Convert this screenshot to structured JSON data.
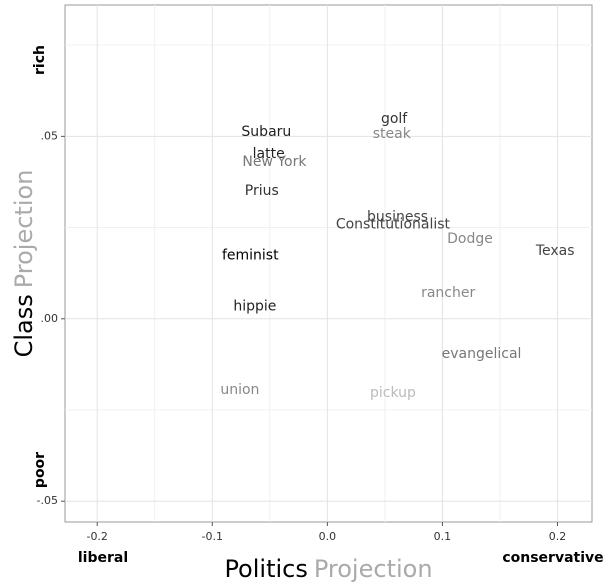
{
  "chart_data": {
    "type": "scatter",
    "x_label": [
      "Politics",
      "Projection"
    ],
    "y_label": [
      "Class",
      "Projection"
    ],
    "x_ends": [
      "liberal",
      "conservative"
    ],
    "y_ends": [
      "poor",
      "rich"
    ],
    "axis_label_colors": [
      "#000000",
      "#aaaaaa"
    ],
    "xlim": [
      -0.228,
      0.23
    ],
    "ylim": [
      -0.0557,
      0.086
    ],
    "xticks": [
      -0.2,
      -0.1,
      {
        "value": 0,
        "label": "0.0"
      },
      0.1,
      0.2
    ],
    "yticks": [
      {
        "value": -0.05,
        "label": "-.05"
      },
      {
        "value": 0,
        "label": ".00"
      },
      {
        "value": 0.05,
        "label": ".05"
      }
    ],
    "x_minor_grid": [
      -0.15,
      -0.05,
      0.05,
      0.15
    ],
    "y_minor_grid": [
      -0.025,
      0.025,
      0.075
    ],
    "grid": true,
    "points": [
      {
        "label": "Subaru",
        "x": -0.053,
        "y": 0.0512,
        "color": "#222222"
      },
      {
        "label": "latte",
        "x": -0.051,
        "y": 0.0452,
        "color": "#222222"
      },
      {
        "label": "New York",
        "x": -0.046,
        "y": 0.043,
        "color": "#777777"
      },
      {
        "label": "Prius",
        "x": -0.057,
        "y": 0.035,
        "color": "#333333"
      },
      {
        "label": "golf",
        "x": 0.058,
        "y": 0.0548,
        "color": "#333333"
      },
      {
        "label": "steak",
        "x": 0.056,
        "y": 0.0507,
        "color": "#888888"
      },
      {
        "label": "business",
        "x": 0.061,
        "y": 0.0279,
        "color": "#444444"
      },
      {
        "label": "Constitutionalist",
        "x": 0.057,
        "y": 0.0258,
        "color": "#444444"
      },
      {
        "label": "Dodge",
        "x": 0.124,
        "y": 0.0219,
        "color": "#888888"
      },
      {
        "label": "Texas",
        "x": 0.198,
        "y": 0.0186,
        "color": "#444444"
      },
      {
        "label": "feminist",
        "x": -0.067,
        "y": 0.0173,
        "color": "#000000"
      },
      {
        "label": "rancher",
        "x": 0.105,
        "y": 0.0071,
        "color": "#888888"
      },
      {
        "label": "hippie",
        "x": -0.063,
        "y": 0.0033,
        "color": "#222222"
      },
      {
        "label": "evangelical",
        "x": 0.134,
        "y": -0.0096,
        "color": "#777777"
      },
      {
        "label": "union",
        "x": -0.076,
        "y": -0.0195,
        "color": "#888888"
      },
      {
        "label": "pickup",
        "x": 0.057,
        "y": -0.0203,
        "color": "#bbbbbb"
      }
    ]
  }
}
